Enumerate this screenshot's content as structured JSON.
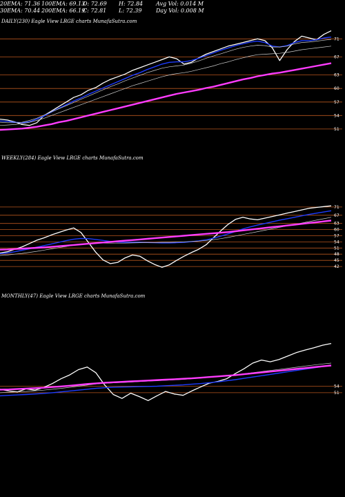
{
  "header": {
    "row1": [
      {
        "label": "20EMA: 71.36"
      },
      {
        "label": "100EMA: 69.13"
      },
      {
        "label": "O: 72.69"
      },
      {
        "label": "H: 72.84"
      },
      {
        "label": "Avg Vol: 0.014  M"
      }
    ],
    "row2": [
      {
        "label": "30EMA: 70.44"
      },
      {
        "label": "200EMA: 66.19"
      },
      {
        "label": "C: 72.81"
      },
      {
        "label": "L: 72.39"
      },
      {
        "label": "Day Vol: 0.008  M"
      }
    ]
  },
  "colors": {
    "background": "#000000",
    "price": "#ffffff",
    "ema_fast": "#1e3cff",
    "ema_slow": "#ff3cff",
    "gridline": "#b8561e",
    "ema_mid": "#d0d0d0"
  },
  "chart_data": [
    {
      "type": "line",
      "title": "DAILY(230) Eagle   View  LRGE charts MunafaSutra.com",
      "levels": [
        71,
        67,
        63,
        60,
        57,
        54,
        51
      ],
      "ylim": [
        49,
        73.5
      ],
      "series": [
        {
          "role": "price",
          "values": [
            53.2,
            53.0,
            52.6,
            52.0,
            51.8,
            52.4,
            54.0,
            55.0,
            56.0,
            57.0,
            58.0,
            58.6,
            59.6,
            60.2,
            61.2,
            62.0,
            62.6,
            63.2,
            64.0,
            64.6,
            65.2,
            65.8,
            66.4,
            67.0,
            66.6,
            65.4,
            65.8,
            66.8,
            67.6,
            68.2,
            68.8,
            69.4,
            69.8,
            70.2,
            70.6,
            71.0,
            70.6,
            69.0,
            66.2,
            68.6,
            70.4,
            71.6,
            71.2,
            70.8,
            72.0,
            72.8
          ]
        },
        {
          "role": "ema_fast",
          "values": [
            52.8,
            52.7,
            52.5,
            52.4,
            52.6,
            53.2,
            53.9,
            54.8,
            55.6,
            56.4,
            57.2,
            57.9,
            58.7,
            59.4,
            60.1,
            60.8,
            61.5,
            62.2,
            62.9,
            63.5,
            64.2,
            64.8,
            65.4,
            65.8,
            65.9,
            65.9,
            66.2,
            66.7,
            67.3,
            67.9,
            68.5,
            69.0,
            69.5,
            69.9,
            70.3,
            70.5,
            70.2,
            69.4,
            69.2,
            69.5,
            70.2,
            70.6,
            70.6,
            70.8,
            71.2,
            71.4
          ]
        },
        {
          "role": "ema_mid",
          "values": [
            52.5,
            52.4,
            52.4,
            52.5,
            52.9,
            53.4,
            54.1,
            54.8,
            55.5,
            56.2,
            56.9,
            57.6,
            58.3,
            59.0,
            59.7,
            60.4,
            61.0,
            61.7,
            62.3,
            62.9,
            63.5,
            64.0,
            64.5,
            64.8,
            65.0,
            65.2,
            65.6,
            66.1,
            66.7,
            67.2,
            67.7,
            68.2,
            68.7,
            69.1,
            69.4,
            69.6,
            69.5,
            69.2,
            69.2,
            69.4,
            69.9,
            70.2,
            70.3,
            70.5,
            70.7,
            70.9
          ]
        },
        {
          "role": "ema_mid",
          "values": [
            51.8,
            51.9,
            52.0,
            52.2,
            52.5,
            52.9,
            53.4,
            54.0,
            54.6,
            55.2,
            55.8,
            56.4,
            57.0,
            57.6,
            58.2,
            58.8,
            59.4,
            60.0,
            60.6,
            61.1,
            61.6,
            62.1,
            62.6,
            63.0,
            63.3,
            63.5,
            63.8,
            64.2,
            64.6,
            65.0,
            65.5,
            65.9,
            66.4,
            66.8,
            67.2,
            67.5,
            67.6,
            67.7,
            67.8,
            68.0,
            68.3,
            68.6,
            68.8,
            69.0,
            69.2,
            69.4
          ]
        },
        {
          "role": "ema_slow",
          "values": [
            50.8,
            50.9,
            51.0,
            51.1,
            51.3,
            51.5,
            51.8,
            52.1,
            52.5,
            52.8,
            53.2,
            53.6,
            54.0,
            54.4,
            54.8,
            55.2,
            55.6,
            56.0,
            56.4,
            56.8,
            57.2,
            57.6,
            58.0,
            58.4,
            58.8,
            59.1,
            59.4,
            59.7,
            60.1,
            60.4,
            60.8,
            61.2,
            61.6,
            62.0,
            62.3,
            62.7,
            63.0,
            63.3,
            63.5,
            63.8,
            64.1,
            64.4,
            64.7,
            65.0,
            65.3,
            65.6
          ]
        }
      ]
    },
    {
      "type": "line",
      "title": "WEEKLY(284) Eagle   View  LRGE charts MunafaSutra.com",
      "levels": [
        71,
        67,
        63,
        60,
        57,
        54,
        51,
        48,
        45,
        42
      ],
      "ylim": [
        40,
        73
      ],
      "series": [
        {
          "role": "price",
          "values": [
            48.6,
            49.2,
            50.4,
            51.6,
            53.2,
            54.8,
            56.0,
            57.4,
            58.6,
            59.8,
            60.8,
            58.6,
            53.8,
            49.0,
            45.2,
            43.4,
            44.0,
            46.2,
            47.6,
            47.0,
            44.8,
            43.0,
            41.6,
            42.8,
            45.0,
            47.0,
            48.8,
            50.4,
            52.6,
            56.0,
            59.4,
            62.6,
            65.0,
            66.0,
            65.2,
            64.8,
            65.6,
            66.4,
            67.2,
            68.0,
            68.8,
            69.6,
            70.4,
            70.8,
            71.2,
            71.6
          ]
        },
        {
          "role": "ema_fast",
          "values": [
            48.2,
            48.6,
            49.2,
            49.9,
            50.6,
            51.4,
            52.2,
            53.0,
            53.8,
            54.6,
            55.3,
            55.7,
            55.6,
            55.2,
            54.7,
            54.2,
            53.9,
            53.8,
            53.8,
            53.8,
            53.7,
            53.6,
            53.5,
            53.5,
            53.6,
            53.8,
            54.1,
            54.5,
            55.0,
            55.8,
            56.8,
            57.9,
            59.1,
            60.3,
            61.3,
            62.2,
            63.0,
            63.8,
            64.6,
            65.3,
            66.0,
            66.7,
            67.4,
            68.0,
            68.6,
            69.2
          ]
        },
        {
          "role": "ema_mid",
          "values": [
            47.4,
            47.6,
            48.0,
            48.4,
            48.9,
            49.4,
            50.0,
            50.6,
            51.2,
            51.8,
            52.4,
            52.9,
            53.2,
            53.4,
            53.4,
            53.4,
            53.4,
            53.4,
            53.5,
            53.6,
            53.7,
            53.7,
            53.8,
            53.8,
            53.9,
            54.0,
            54.2,
            54.4,
            54.7,
            55.1,
            55.6,
            56.2,
            56.9,
            57.6,
            58.3,
            59.0,
            59.7,
            60.4,
            61.1,
            61.8,
            62.5,
            63.2,
            63.9,
            64.6,
            65.3,
            66.0
          ]
        },
        {
          "role": "ema_slow",
          "values": [
            50.2,
            50.3,
            50.5,
            50.7,
            50.9,
            51.1,
            51.3,
            51.6,
            51.9,
            52.2,
            52.5,
            52.8,
            53.1,
            53.4,
            53.7,
            54.0,
            54.3,
            54.6,
            54.9,
            55.2,
            55.5,
            55.8,
            56.1,
            56.4,
            56.7,
            57.0,
            57.3,
            57.6,
            57.9,
            58.2,
            58.5,
            58.8,
            59.2,
            59.6,
            60.0,
            60.4,
            60.8,
            61.2,
            61.6,
            62.0,
            62.4,
            62.8,
            63.2,
            63.6,
            64.0,
            64.4
          ]
        }
      ]
    },
    {
      "type": "line",
      "title": "MONTHLY(47) Eagle   View  LRGE charts MunafaSutra.com",
      "levels": [
        54,
        51
      ],
      "ylim": [
        38,
        76
      ],
      "series": [
        {
          "role": "price",
          "values": [
            52.6,
            51.8,
            51.4,
            52.8,
            52.2,
            53.4,
            55.2,
            57.4,
            59.2,
            61.6,
            62.8,
            60.2,
            54.6,
            50.2,
            48.4,
            50.8,
            49.2,
            47.4,
            49.6,
            51.6,
            50.4,
            49.8,
            51.8,
            53.6,
            55.4,
            56.2,
            57.4,
            59.8,
            62.0,
            64.6,
            66.0,
            65.2,
            66.2,
            67.8,
            69.4,
            70.6,
            71.6,
            72.8,
            73.6
          ]
        },
        {
          "role": "ema_fast",
          "values": [
            49.6,
            49.8,
            50.0,
            50.2,
            50.4,
            50.7,
            51.0,
            51.4,
            51.8,
            52.2,
            52.6,
            53.0,
            53.3,
            53.5,
            53.6,
            53.7,
            53.8,
            53.9,
            54.0,
            54.2,
            54.4,
            54.6,
            54.9,
            55.2,
            55.6,
            56.0,
            56.5,
            57.0,
            57.6,
            58.2,
            58.8,
            59.4,
            60.0,
            60.6,
            61.2,
            61.8,
            62.4,
            63.0,
            63.6
          ]
        },
        {
          "role": "ema_mid",
          "values": [
            51.0,
            51.2,
            51.4,
            51.6,
            51.9,
            52.2,
            52.6,
            53.0,
            53.5,
            54.0,
            54.5,
            55.0,
            55.3,
            55.5,
            55.7,
            55.9,
            56.1,
            56.3,
            56.5,
            56.7,
            56.9,
            57.1,
            57.4,
            57.7,
            58.0,
            58.4,
            58.8,
            59.2,
            59.7,
            60.2,
            60.7,
            61.2,
            61.7,
            62.2,
            62.7,
            63.2,
            63.7,
            64.2,
            64.6
          ]
        },
        {
          "role": "ema_slow",
          "values": [
            52.4,
            52.5,
            52.7,
            52.9,
            53.1,
            53.3,
            53.6,
            53.9,
            54.2,
            54.6,
            55.0,
            55.3,
            55.6,
            55.8,
            56.0,
            56.2,
            56.4,
            56.6,
            56.8,
            57.0,
            57.2,
            57.4,
            57.6,
            57.9,
            58.2,
            58.5,
            58.8,
            59.1,
            59.5,
            59.9,
            60.3,
            60.7,
            61.1,
            61.5,
            61.9,
            62.3,
            62.7,
            63.1,
            63.5
          ]
        }
      ]
    }
  ]
}
